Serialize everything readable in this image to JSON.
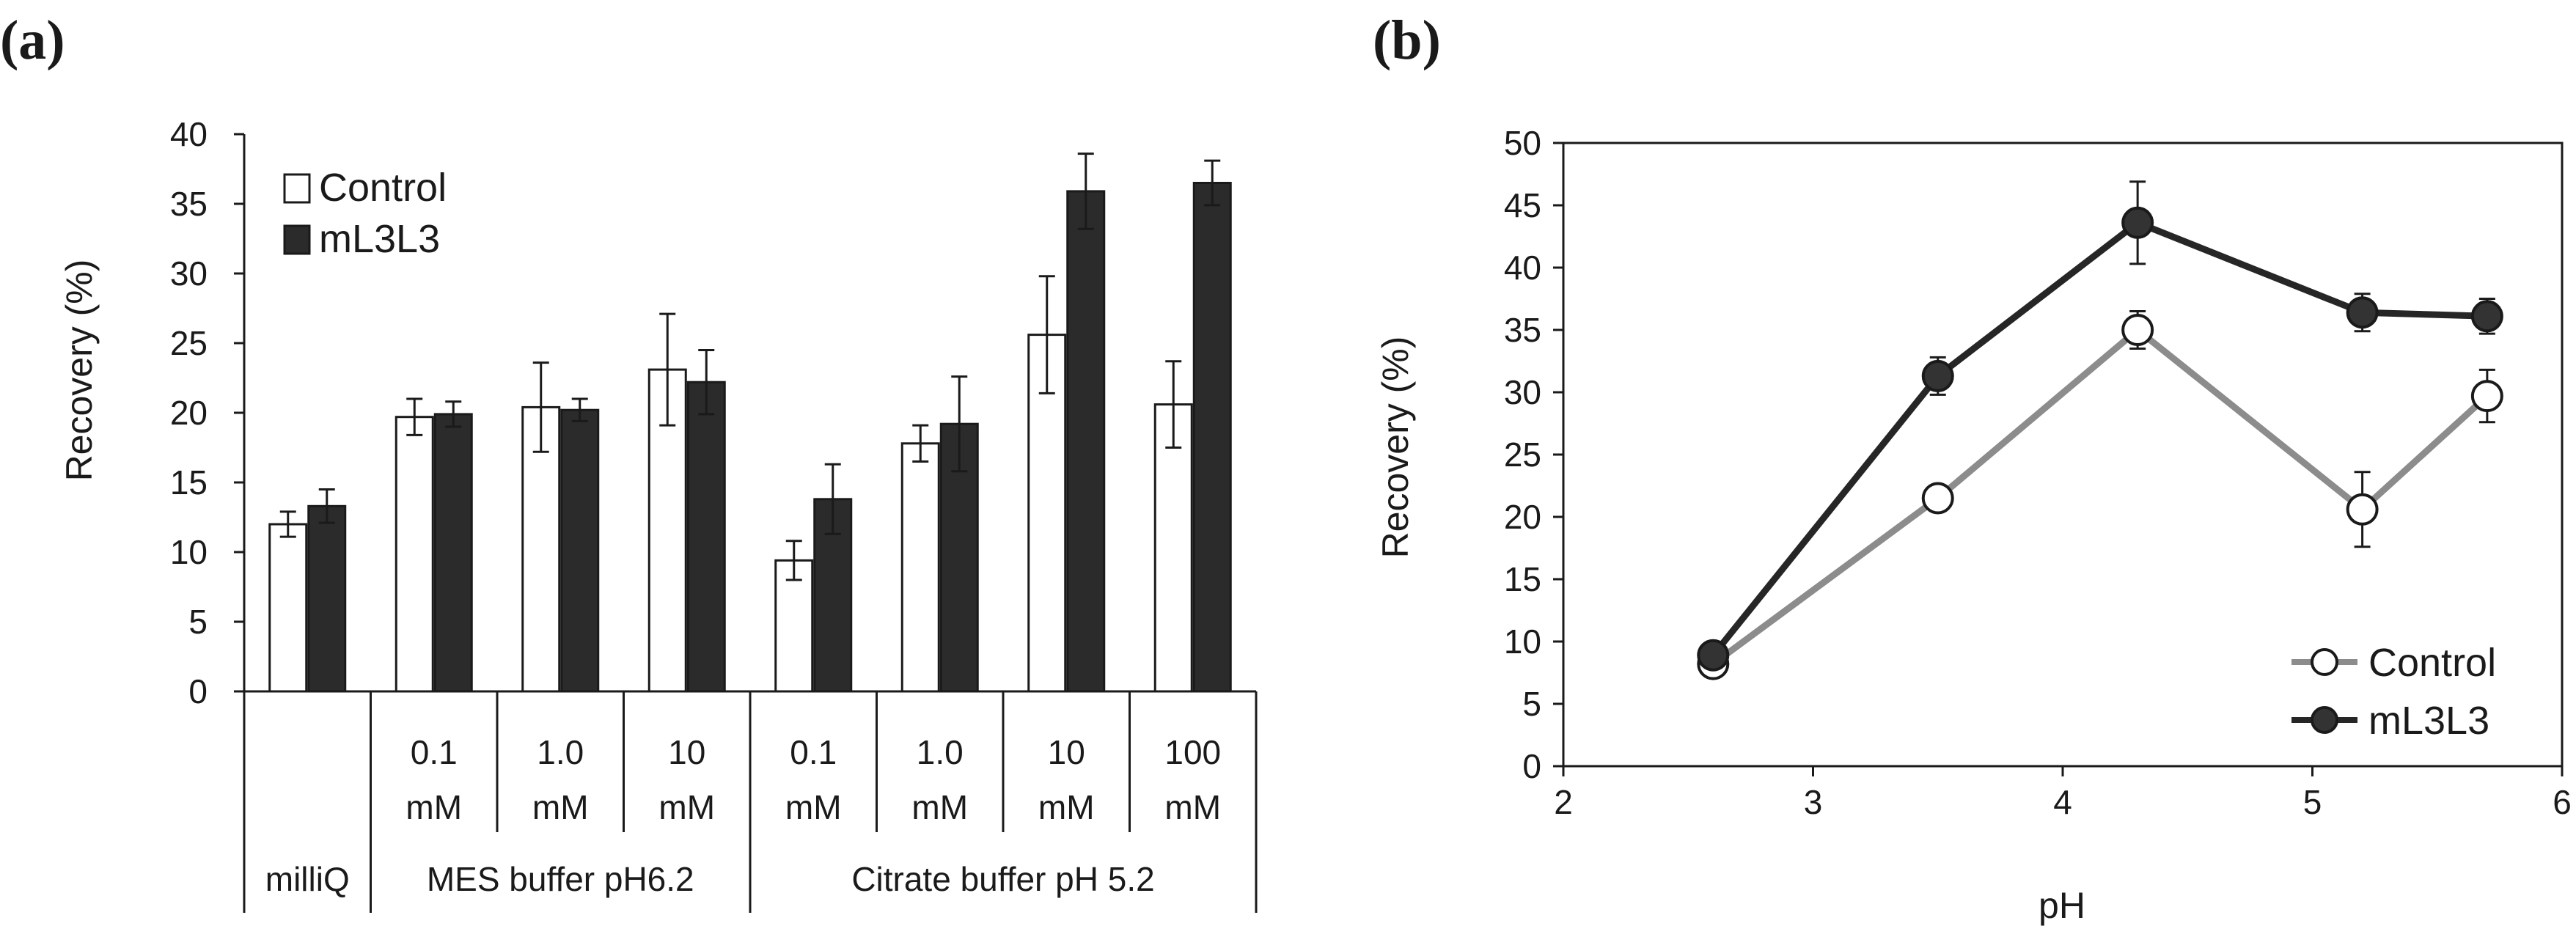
{
  "colors": {
    "axis": "#1a1a1a",
    "control_bar_fill": "#ffffff",
    "ml3l3_bar_fill": "#2b2b2b",
    "control_line": "#8c8c8c",
    "ml3l3_line": "#262626",
    "control_marker": "#ffffff",
    "ml3l3_marker": "#333333"
  },
  "chart_data": [
    {
      "panel": "(a)",
      "type": "bar",
      "title": "",
      "xlabel": "",
      "ylabel": "Recovery (%)",
      "ylim": [
        0,
        40
      ],
      "yticks": [
        "0",
        "5",
        "10",
        "15",
        "20",
        "25",
        "30",
        "35",
        "40"
      ],
      "legend": {
        "position": "top-left",
        "entries": [
          "Control",
          "mL3L3"
        ]
      },
      "categories": [
        {
          "line1": "",
          "line2": ""
        },
        {
          "line1": "0.1",
          "line2": "mM"
        },
        {
          "line1": "1.0",
          "line2": "mM"
        },
        {
          "line1": "10",
          "line2": "mM"
        },
        {
          "line1": "0.1",
          "line2": "mM"
        },
        {
          "line1": "1.0",
          "line2": "mM"
        },
        {
          "line1": "10",
          "line2": "mM"
        },
        {
          "line1": "100",
          "line2": "mM"
        }
      ],
      "groups": [
        {
          "label": "milliQ",
          "span": [
            0,
            0
          ]
        },
        {
          "label": "MES buffer pH6.2",
          "span": [
            1,
            3
          ]
        },
        {
          "label": "Citrate buffer pH 5.2",
          "span": [
            4,
            7
          ]
        }
      ],
      "series": [
        {
          "name": "Control",
          "values": [
            12.0,
            19.7,
            20.4,
            23.1,
            9.4,
            17.8,
            25.6,
            20.6
          ],
          "errors": [
            0.9,
            1.3,
            3.2,
            4.0,
            1.4,
            1.3,
            4.2,
            3.1
          ]
        },
        {
          "name": "mL3L3",
          "values": [
            13.3,
            19.9,
            20.2,
            22.2,
            13.8,
            19.2,
            35.9,
            36.5
          ],
          "errors": [
            1.2,
            0.9,
            0.8,
            2.3,
            2.5,
            3.4,
            2.7,
            1.6
          ]
        }
      ]
    },
    {
      "panel": "(b)",
      "type": "line",
      "title": "",
      "xlabel": "pH",
      "ylabel": "Recovery (%)",
      "xlim": [
        2,
        6
      ],
      "ylim": [
        0,
        50
      ],
      "xticks": [
        "2",
        "3",
        "4",
        "5",
        "6"
      ],
      "yticks": [
        "0",
        "5",
        "10",
        "15",
        "20",
        "25",
        "30",
        "35",
        "40",
        "45",
        "50"
      ],
      "legend": {
        "position": "bottom-right",
        "entries": [
          "Control",
          "mL3L3"
        ]
      },
      "series": [
        {
          "name": "Control",
          "x": [
            2.6,
            3.5,
            4.3,
            5.2,
            5.7
          ],
          "y": [
            8.2,
            21.5,
            35.0,
            20.6,
            29.7
          ],
          "errors": [
            0.6,
            0.8,
            1.5,
            3.0,
            2.1
          ]
        },
        {
          "name": "mL3L3",
          "x": [
            2.6,
            3.5,
            4.3,
            5.2,
            5.7
          ],
          "y": [
            8.9,
            31.3,
            43.6,
            36.4,
            36.1
          ],
          "errors": [
            0.6,
            1.5,
            3.3,
            1.5,
            1.4
          ]
        }
      ]
    }
  ]
}
